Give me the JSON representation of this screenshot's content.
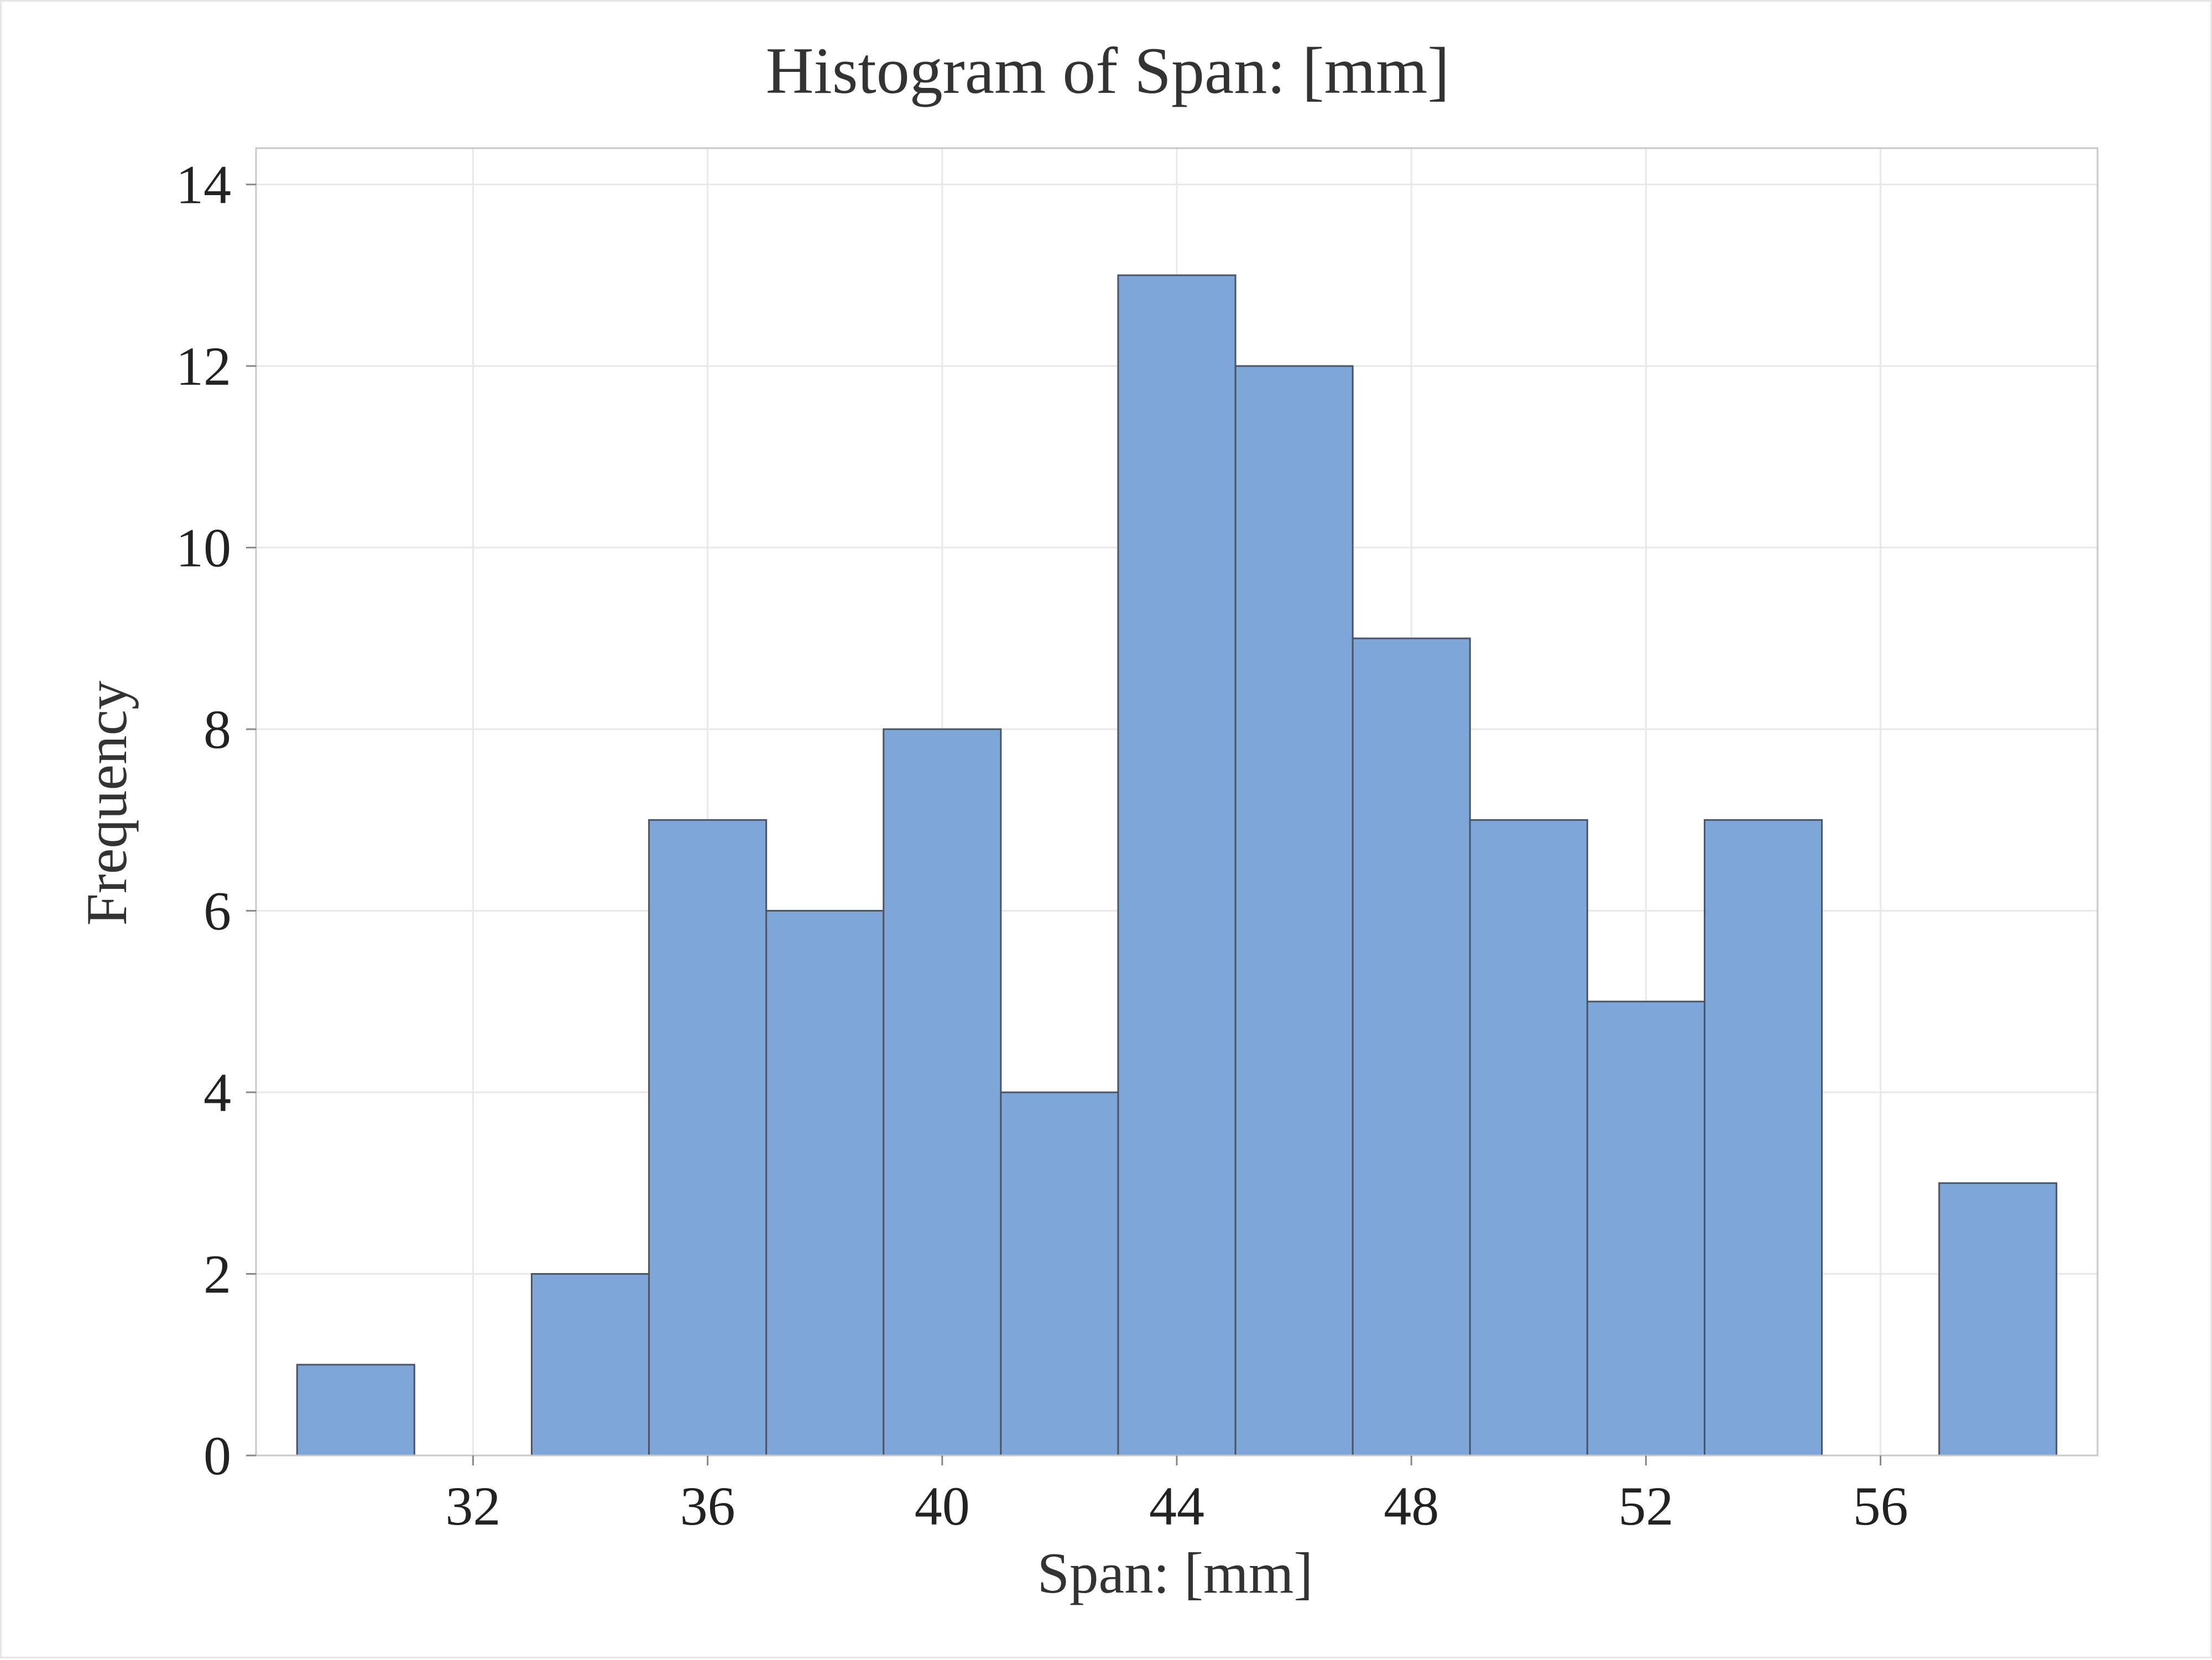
{
  "chart_data": {
    "type": "bar",
    "title": "Histogram of Span: [mm]",
    "xlabel": "Span: [mm]",
    "ylabel": "Frequency",
    "bin_width": 2,
    "bins": [
      {
        "start": 29,
        "end": 31,
        "value": 1
      },
      {
        "start": 31,
        "end": 33,
        "value": 0
      },
      {
        "start": 33,
        "end": 35,
        "value": 2
      },
      {
        "start": 35,
        "end": 37,
        "value": 7
      },
      {
        "start": 37,
        "end": 39,
        "value": 6
      },
      {
        "start": 39,
        "end": 41,
        "value": 8
      },
      {
        "start": 41,
        "end": 43,
        "value": 4
      },
      {
        "start": 43,
        "end": 45,
        "value": 13
      },
      {
        "start": 45,
        "end": 47,
        "value": 12
      },
      {
        "start": 47,
        "end": 49,
        "value": 9
      },
      {
        "start": 49,
        "end": 51,
        "value": 7
      },
      {
        "start": 51,
        "end": 53,
        "value": 5
      },
      {
        "start": 53,
        "end": 55,
        "value": 7
      },
      {
        "start": 55,
        "end": 57,
        "value": 0
      },
      {
        "start": 57,
        "end": 59,
        "value": 3
      }
    ],
    "xlim": [
      28.3,
      59.7
    ],
    "ylim": [
      0,
      14.4
    ],
    "x_ticks": [
      32,
      36,
      40,
      44,
      48,
      52,
      56
    ],
    "y_ticks": [
      0,
      2,
      4,
      6,
      8,
      10,
      12,
      14
    ],
    "grid": true,
    "colors": {
      "bar_fill": "#7ea6d8",
      "bar_edge": "#4a5566",
      "grid": "#e8e8e8",
      "frame": "#c8c8c8"
    }
  }
}
